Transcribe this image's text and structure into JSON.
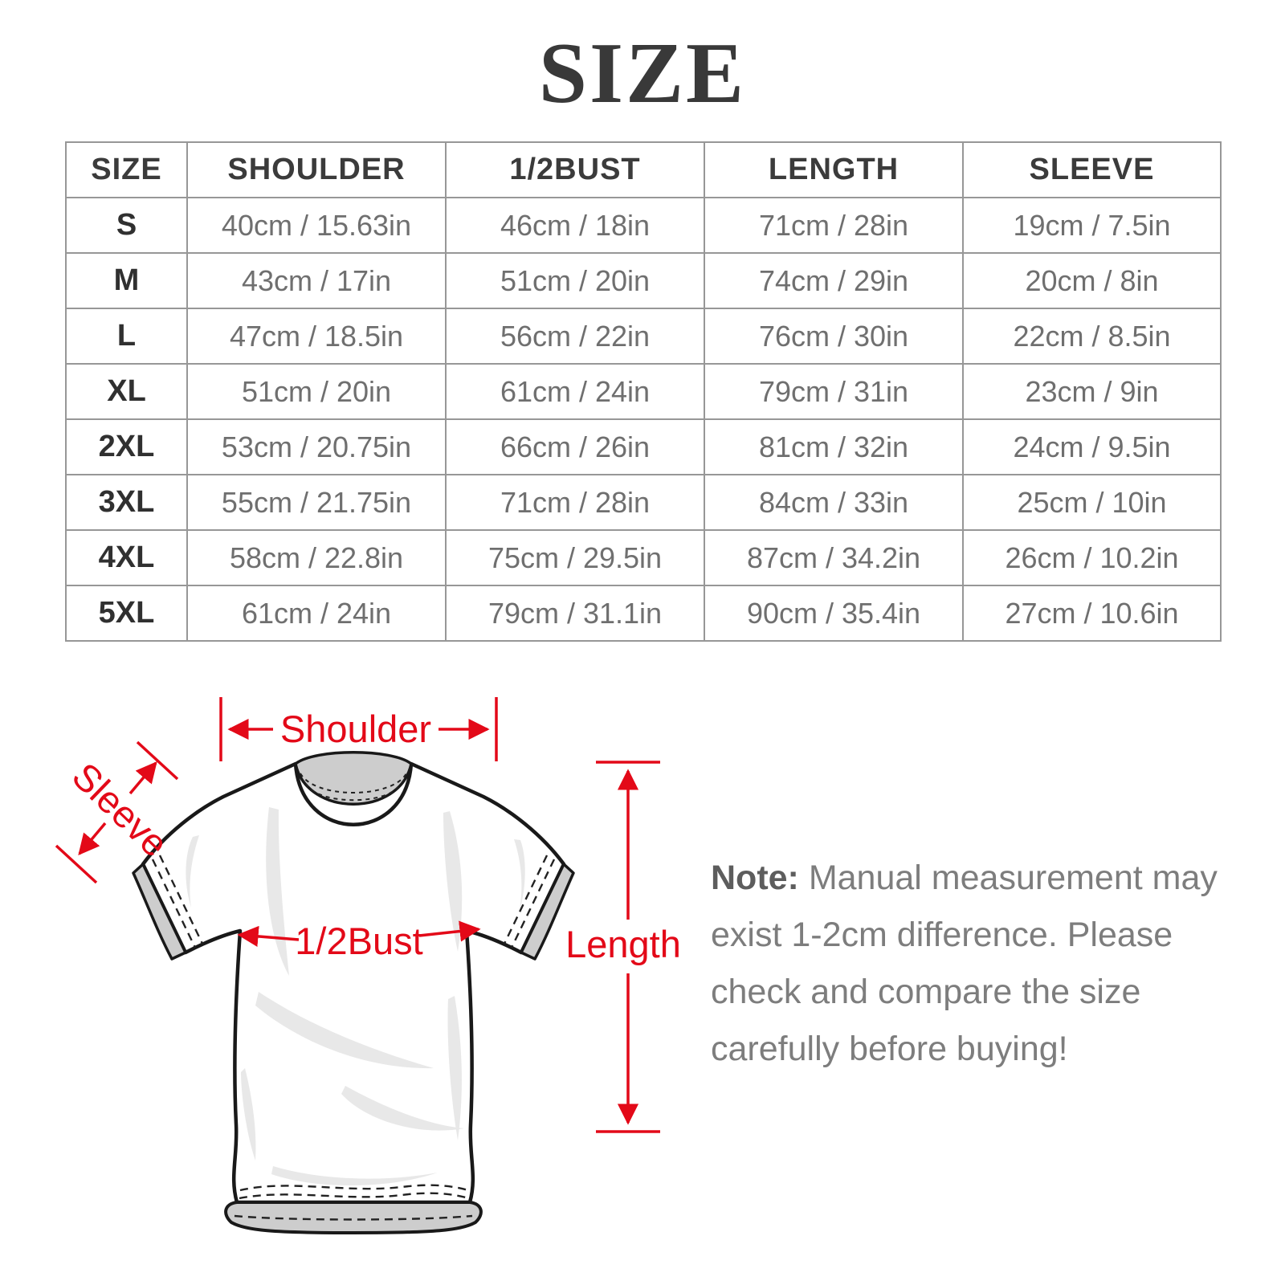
{
  "title": "SIZE",
  "table": {
    "columns": [
      "SIZE",
      "SHOULDER",
      "1/2BUST",
      "LENGTH",
      "SLEEVE"
    ],
    "rows": [
      [
        "S",
        "40cm / 15.63in",
        "46cm / 18in",
        "71cm / 28in",
        "19cm / 7.5in"
      ],
      [
        "M",
        "43cm / 17in",
        "51cm / 20in",
        "74cm / 29in",
        "20cm / 8in"
      ],
      [
        "L",
        "47cm / 18.5in",
        "56cm / 22in",
        "76cm / 30in",
        "22cm / 8.5in"
      ],
      [
        "XL",
        "51cm / 20in",
        "61cm / 24in",
        "79cm / 31in",
        "23cm / 9in"
      ],
      [
        "2XL",
        "53cm / 20.75in",
        "66cm / 26in",
        "81cm / 32in",
        "24cm / 9.5in"
      ],
      [
        "3XL",
        "55cm / 21.75in",
        "71cm / 28in",
        "84cm / 33in",
        "25cm / 10in"
      ],
      [
        "4XL",
        "58cm / 22.8in",
        "75cm / 29.5in",
        "87cm / 34.2in",
        "26cm / 10.2in"
      ],
      [
        "5XL",
        "61cm / 24in",
        "79cm / 31.1in",
        "90cm / 35.4in",
        "27cm / 10.6in"
      ]
    ]
  },
  "diagram": {
    "shoulder_label": "Shoulder",
    "sleeve_label": "Sleeve",
    "half_bust_label": "1/2Bust",
    "length_label": "Length",
    "annotation_color": "#e30918"
  },
  "note": {
    "label": "Note:",
    "lines": [
      "Manual measurement may",
      "exist 1-2cm difference. Please",
      "check and compare the size",
      "carefully before buying!"
    ]
  }
}
